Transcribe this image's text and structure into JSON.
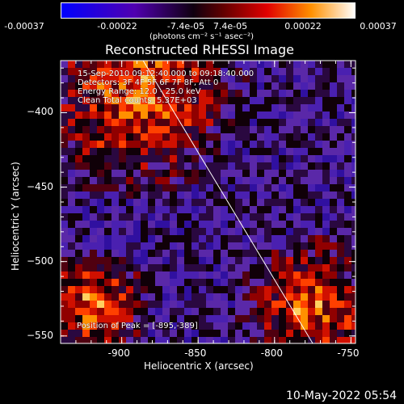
{
  "colorbar": {
    "ticks": [
      "-0.00037",
      "-0.00022",
      "-7.4e-05",
      "7.4e-05",
      "0.00022",
      "0.00037"
    ],
    "units": "(photons cm⁻² s⁻¹ asec⁻²)",
    "colors": [
      "#0000ff",
      "#4000c0",
      "#000000",
      "#ff0000",
      "#ff9000",
      "#ffffff"
    ]
  },
  "chart_data": {
    "type": "heatmap",
    "title": "Reconstructed RHESSI Image",
    "xlabel": "Heliocentric X (arcsec)",
    "ylabel": "Heliocentric Y (arcsec)",
    "xlim": [
      -940,
      -747
    ],
    "ylim": [
      -555,
      -365
    ],
    "xticks": [
      -900,
      -850,
      -800,
      -750
    ],
    "yticks": [
      -400,
      -450,
      -500,
      -550
    ],
    "xtick_labels": [
      "-900",
      "-850",
      "-800",
      "-750"
    ],
    "ytick_labels": [
      "−400",
      "−450",
      "−500",
      "−550"
    ],
    "limb_line": [
      [
        -886,
        -365
      ],
      [
        -775,
        -555
      ]
    ],
    "peak": [
      -895,
      -389
    ],
    "annotations": [
      "15-Sep-2010 09:12:40.000 to 09:18:40.000",
      "Detectors: 3F 4F 5F 6F 7F 8F, Att 0",
      "Energy Range: 12.0 - 25.0 keV",
      "Clean     Total counts: 5.37E+03"
    ],
    "peak_label": "Position of Peak = [-895,-389]"
  },
  "timestamp": "10-May-2022 05:54"
}
